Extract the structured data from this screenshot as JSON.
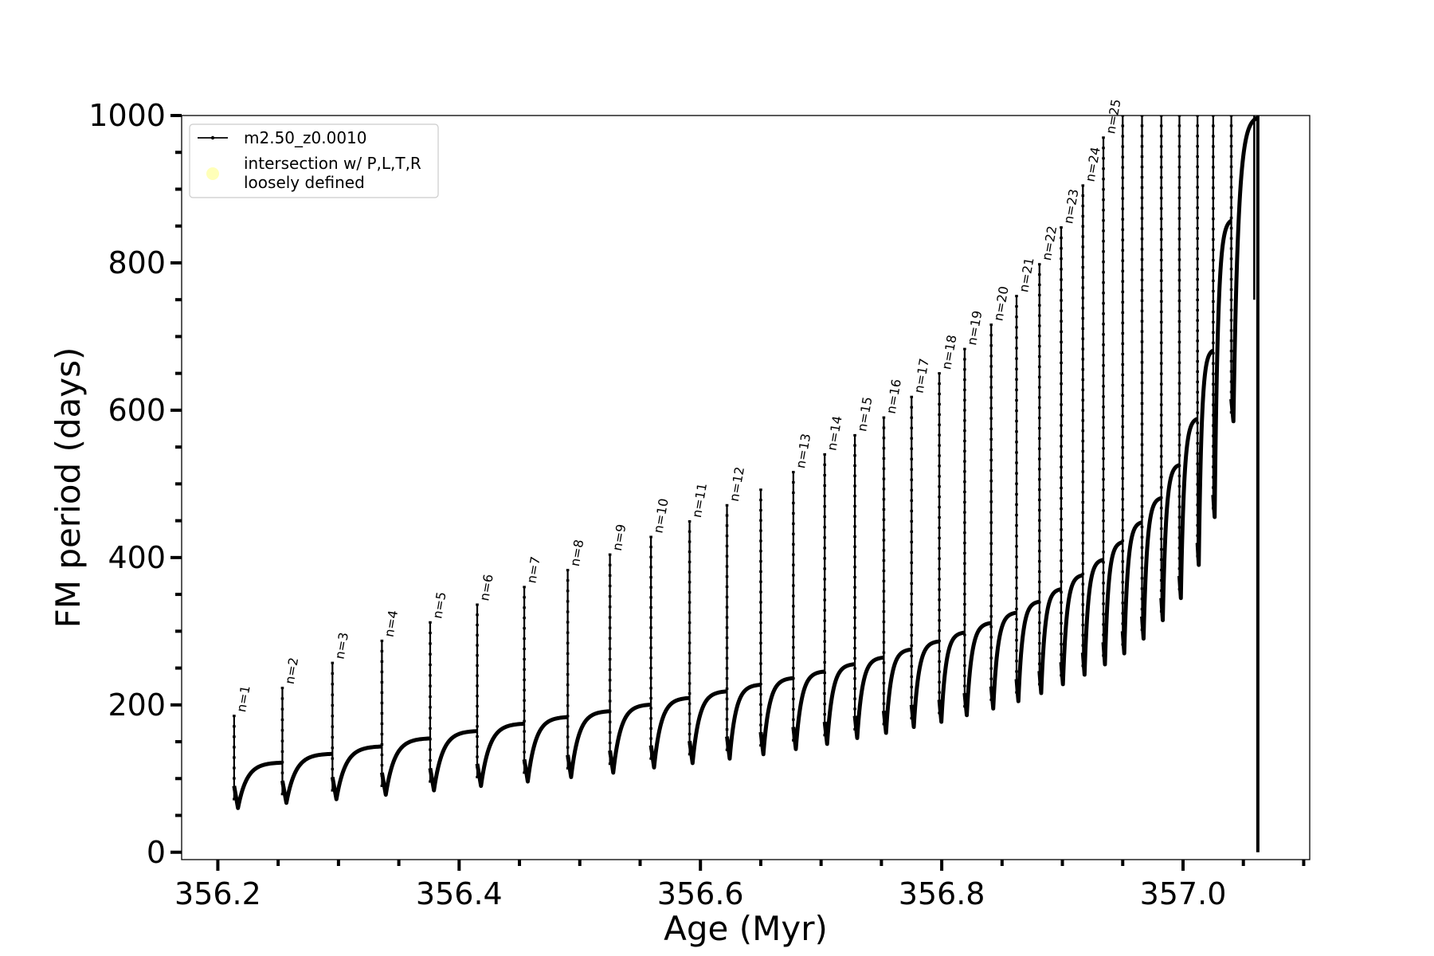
{
  "chart_data": {
    "type": "line",
    "xlabel": "Age (Myr)",
    "ylabel": "FM period (days)",
    "xlim": [
      356.17,
      357.105
    ],
    "ylim": [
      -10,
      1000
    ],
    "x_ticks": [
      356.2,
      356.4,
      356.6,
      356.8,
      357.0
    ],
    "x_tick_labels": [
      "356.2",
      "356.4",
      "356.6",
      "356.8",
      "357.0"
    ],
    "y_ticks": [
      0,
      200,
      400,
      600,
      800,
      1000
    ],
    "y_tick_labels": [
      "0",
      "200",
      "400",
      "600",
      "800",
      "1000"
    ],
    "legend": {
      "position": "top-left",
      "entries": [
        {
          "label": "m2.50_z0.0010",
          "marker": "line-with-dots",
          "color": "#000000"
        },
        {
          "label": "intersection w/ P,L,T,R\nloosely defined",
          "marker": "circle",
          "color": "#ffffb0"
        }
      ]
    },
    "series": [
      {
        "name": "m2.50_z0.0010",
        "color": "#000000",
        "pulses": [
          {
            "n": 1,
            "age": 356.2135,
            "peak": 185,
            "dip": 60,
            "plateau": 122
          },
          {
            "n": 2,
            "age": 356.2535,
            "peak": 223,
            "dip": 67,
            "plateau": 134
          },
          {
            "n": 3,
            "age": 356.295,
            "peak": 257,
            "dip": 72,
            "plateau": 144
          },
          {
            "n": 4,
            "age": 356.336,
            "peak": 287,
            "dip": 78,
            "plateau": 155
          },
          {
            "n": 5,
            "age": 356.376,
            "peak": 312,
            "dip": 84,
            "plateau": 165
          },
          {
            "n": 6,
            "age": 356.415,
            "peak": 336,
            "dip": 90,
            "plateau": 175
          },
          {
            "n": 7,
            "age": 356.454,
            "peak": 360,
            "dip": 96,
            "plateau": 184
          },
          {
            "n": 8,
            "age": 356.49,
            "peak": 383,
            "dip": 102,
            "plateau": 192
          },
          {
            "n": 9,
            "age": 356.525,
            "peak": 404,
            "dip": 108,
            "plateau": 201
          },
          {
            "n": 10,
            "age": 356.559,
            "peak": 428,
            "dip": 115,
            "plateau": 210
          },
          {
            "n": 11,
            "age": 356.591,
            "peak": 449,
            "dip": 121,
            "plateau": 219
          },
          {
            "n": 12,
            "age": 356.622,
            "peak": 471,
            "dip": 127,
            "plateau": 228
          },
          {
            "n": null,
            "age": 356.65,
            "peak": 492,
            "dip": 133,
            "plateau": 237
          },
          {
            "n": 13,
            "age": 356.677,
            "peak": 516,
            "dip": 140,
            "plateau": 246
          },
          {
            "n": 14,
            "age": 356.703,
            "peak": 540,
            "dip": 147,
            "plateau": 256
          },
          {
            "n": 15,
            "age": 356.728,
            "peak": 566,
            "dip": 155,
            "plateau": 265
          },
          {
            "n": 16,
            "age": 356.752,
            "peak": 590,
            "dip": 162,
            "plateau": 276
          },
          {
            "n": 17,
            "age": 356.775,
            "peak": 618,
            "dip": 170,
            "plateau": 287
          },
          {
            "n": 18,
            "age": 356.798,
            "peak": 650,
            "dip": 177,
            "plateau": 299
          },
          {
            "n": 19,
            "age": 356.819,
            "peak": 683,
            "dip": 186,
            "plateau": 312
          },
          {
            "n": 20,
            "age": 356.841,
            "peak": 716,
            "dip": 195,
            "plateau": 326
          },
          {
            "n": 21,
            "age": 356.862,
            "peak": 755,
            "dip": 205,
            "plateau": 341
          },
          {
            "n": 22,
            "age": 356.881,
            "peak": 798,
            "dip": 216,
            "plateau": 358
          },
          {
            "n": 23,
            "age": 356.899,
            "peak": 848,
            "dip": 228,
            "plateau": 377
          },
          {
            "n": 24,
            "age": 356.917,
            "peak": 905,
            "dip": 241,
            "plateau": 398
          },
          {
            "n": 25,
            "age": 356.934,
            "peak": 970,
            "dip": 255,
            "plateau": 422
          },
          {
            "n": null,
            "age": 356.95,
            "peak": 1000,
            "dip": 270,
            "plateau": 449
          },
          {
            "n": null,
            "age": 356.966,
            "peak": 1000,
            "dip": 290,
            "plateau": 482
          },
          {
            "n": null,
            "age": 356.982,
            "peak": 1000,
            "dip": 315,
            "plateau": 527
          },
          {
            "n": null,
            "age": 356.997,
            "peak": 1000,
            "dip": 345,
            "plateau": 590
          },
          {
            "n": null,
            "age": 357.012,
            "peak": 1000,
            "dip": 390,
            "plateau": 683
          },
          {
            "n": null,
            "age": 357.025,
            "peak": 1000,
            "dip": 455,
            "plateau": 860
          },
          {
            "n": null,
            "age": 357.04,
            "peak": 1000,
            "dip": 585,
            "plateau": 1000
          }
        ],
        "final_spike": {
          "age": 357.062,
          "ymin": 0,
          "ymax": 1000
        }
      }
    ]
  }
}
